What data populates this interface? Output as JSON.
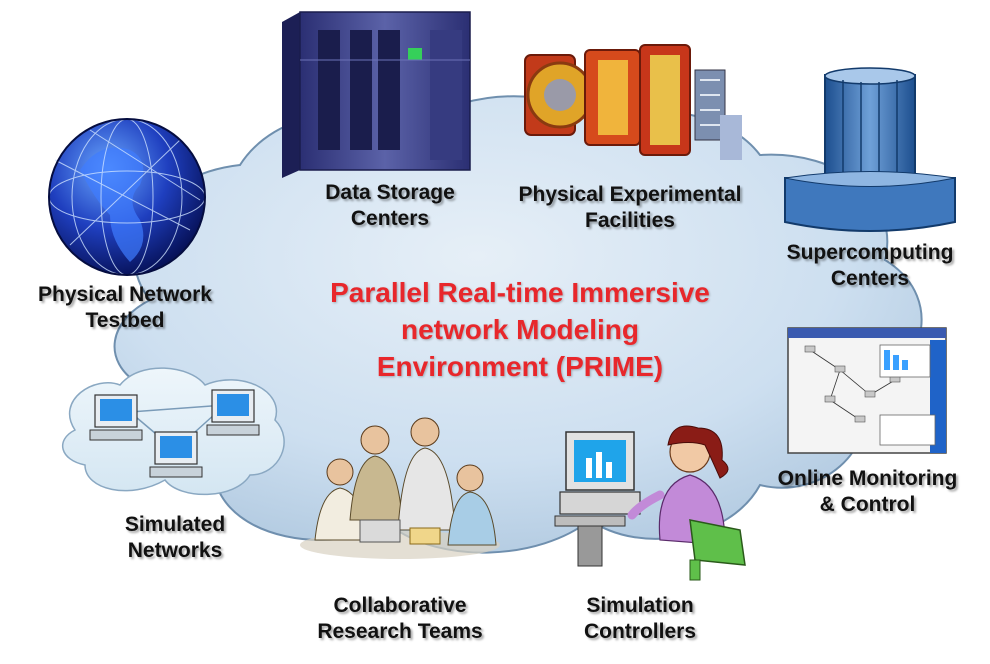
{
  "diagram": {
    "title_lines": [
      "Parallel Real-time Immersive",
      "network Modeling",
      "Environment (PRIME)"
    ],
    "title_color": "#e8272b",
    "cloud_color": "#c9dcec",
    "nodes": {
      "data_storage": {
        "lines": [
          "Data Storage",
          "Centers"
        ],
        "icon": "storage-rack-icon"
      },
      "experimental": {
        "lines": [
          "Physical Experimental",
          "Facilities"
        ],
        "icon": "particle-detector-icon"
      },
      "supercomputing": {
        "lines": [
          "Supercomputing",
          "Centers"
        ],
        "icon": "supercomputer-icon"
      },
      "testbed": {
        "lines": [
          "Physical Network",
          "Testbed"
        ],
        "icon": "globe-network-icon"
      },
      "monitoring": {
        "lines": [
          "Online Monitoring",
          "& Control"
        ],
        "icon": "monitoring-window-icon"
      },
      "simulated": {
        "lines": [
          "Simulated",
          "Networks"
        ],
        "icon": "network-computers-icon"
      },
      "research": {
        "lines": [
          "Collaborative",
          "Research Teams"
        ],
        "icon": "team-people-icon"
      },
      "controllers": {
        "lines": [
          "Simulation",
          "Controllers"
        ],
        "icon": "person-at-computer-icon"
      }
    }
  }
}
